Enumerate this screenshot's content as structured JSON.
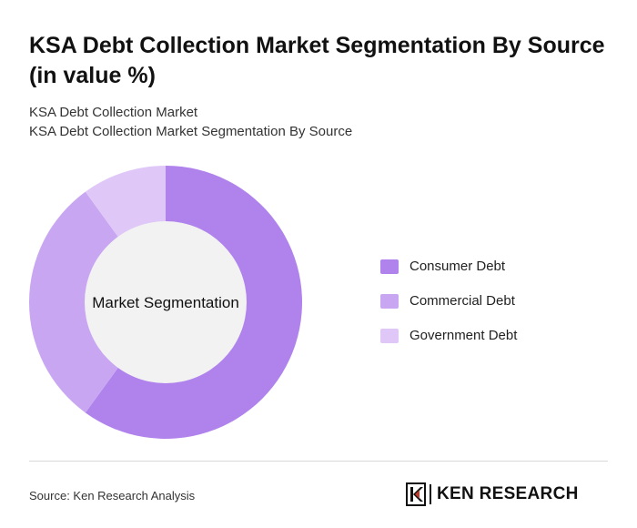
{
  "title": "KSA Debt Collection Market Segmentation By Source (in value %)",
  "subtitle_lines": [
    "KSA Debt Collection Market",
    "KSA Debt Collection Market Segmentation By Source"
  ],
  "chart_data": {
    "type": "pie",
    "variant": "donut",
    "center_label": "Market Segmentation",
    "categories": [
      "Consumer Debt",
      "Commercial Debt",
      "Government Debt"
    ],
    "values": [
      60,
      30,
      10
    ],
    "colors": [
      "#b083ec",
      "#c9a6f2",
      "#dfc7f7"
    ],
    "legend_position": "right"
  },
  "footer": {
    "source": "Source: Ken Research Analysis",
    "brand": "KEN RESEARCH"
  }
}
